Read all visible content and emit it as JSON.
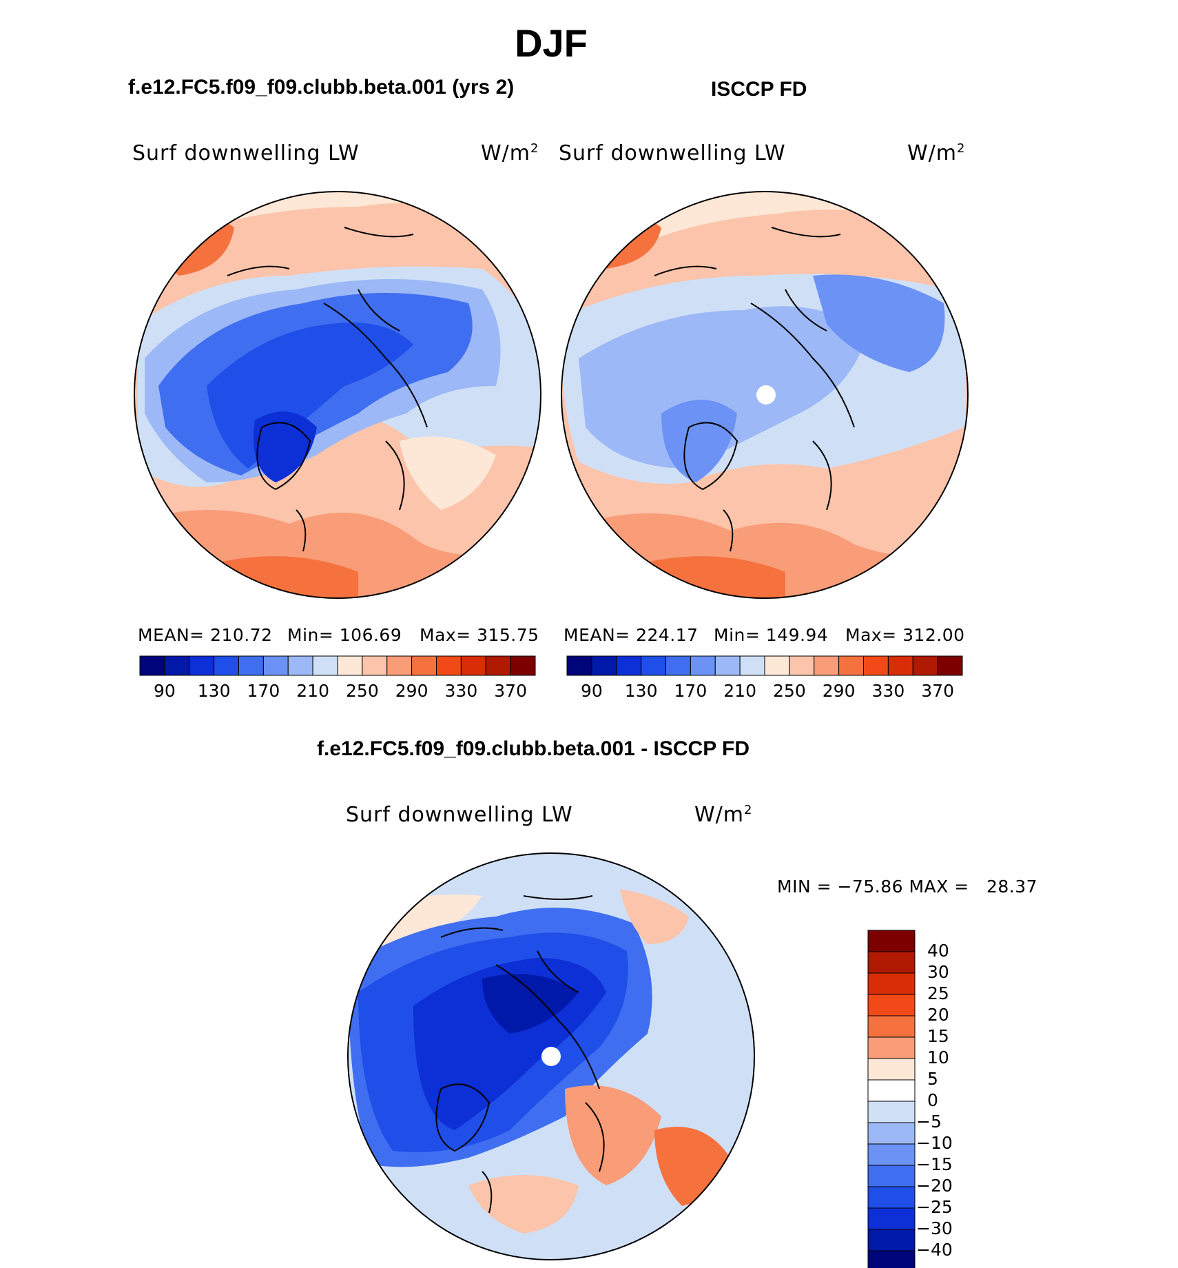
{
  "title": "DJF",
  "panels": {
    "model": {
      "case": "f.e12.FC5.f09_f09.clubb.beta.001 (yrs 2)",
      "variable": "Surf downwelling LW",
      "units": "W/m",
      "units_exp": "2",
      "mean_label": "MEAN=",
      "mean": "210.72",
      "min_label": "Min=",
      "min": "106.69",
      "max_label": "Max=",
      "max": "315.75"
    },
    "obs": {
      "case": "ISCCP FD",
      "variable": "Surf downwelling LW",
      "units": "W/m",
      "units_exp": "2",
      "mean_label": "MEAN=",
      "mean": "224.17",
      "min_label": "Min=",
      "min": "149.94",
      "max_label": "Max=",
      "max": "312.00"
    },
    "diff": {
      "case": "f.e12.FC5.f09_f09.clubb.beta.001 - ISCCP FD",
      "variable": "Surf downwelling LW",
      "units": "W/m",
      "units_exp": "2",
      "minmax_text": "MIN = −75.86 MAX =   28.37"
    }
  },
  "chart_data": [
    {
      "type": "heatmap",
      "projection": "north-polar-stereographic",
      "title": "f.e12.FC5.f09_f09.clubb.beta.001 (yrs 2)",
      "variable": "Surf downwelling LW",
      "units": "W/m^2",
      "stats": {
        "mean": 210.72,
        "min": 106.69,
        "max": 315.75
      },
      "colorbar_levels": [
        90,
        110,
        130,
        150,
        170,
        190,
        210,
        230,
        250,
        270,
        290,
        310,
        330,
        350,
        370
      ],
      "colorbar_tick_labels": [
        "90",
        "130",
        "170",
        "210",
        "250",
        "290",
        "330",
        "370"
      ],
      "colors": [
        "#00047a",
        "#0019a8",
        "#0d2fd6",
        "#1f4fe8",
        "#3f6ef0",
        "#6b92f4",
        "#9cb8f6",
        "#cfe0f6",
        "#fde7d6",
        "#fcc4aa",
        "#f99c78",
        "#f5723f",
        "#f14a18",
        "#d82d06",
        "#b01a02",
        "#7c0000"
      ]
    },
    {
      "type": "heatmap",
      "projection": "north-polar-stereographic",
      "title": "ISCCP FD",
      "variable": "Surf downwelling LW",
      "units": "W/m^2",
      "stats": {
        "mean": 224.17,
        "min": 149.94,
        "max": 312.0
      },
      "colorbar_levels": [
        90,
        110,
        130,
        150,
        170,
        190,
        210,
        230,
        250,
        270,
        290,
        310,
        330,
        350,
        370
      ],
      "colorbar_tick_labels": [
        "90",
        "130",
        "170",
        "210",
        "250",
        "290",
        "330",
        "370"
      ],
      "colors": [
        "#00047a",
        "#0019a8",
        "#0d2fd6",
        "#1f4fe8",
        "#3f6ef0",
        "#6b92f4",
        "#9cb8f6",
        "#cfe0f6",
        "#fde7d6",
        "#fcc4aa",
        "#f99c78",
        "#f5723f",
        "#f14a18",
        "#d82d06",
        "#b01a02",
        "#7c0000"
      ]
    },
    {
      "type": "heatmap",
      "projection": "north-polar-stereographic",
      "title": "f.e12.FC5.f09_f09.clubb.beta.001 - ISCCP FD",
      "variable": "Surf downwelling LW",
      "units": "W/m^2",
      "stats": {
        "min": -75.86,
        "max": 28.37
      },
      "colorbar_levels": [
        -40,
        -30,
        -25,
        -20,
        -15,
        -10,
        -5,
        0,
        5,
        10,
        15,
        20,
        25,
        30,
        40
      ],
      "colorbar_tick_labels": [
        "40",
        "30",
        "25",
        "20",
        "15",
        "10",
        "5",
        "0",
        "−5",
        "−10",
        "−15",
        "−20",
        "−25",
        "−30",
        "−40"
      ],
      "colors": [
        "#7c0000",
        "#b01a02",
        "#d82d06",
        "#f14a18",
        "#f5723f",
        "#f99c78",
        "#fde7d6",
        "#ffffff",
        "#cfe0f6",
        "#9cb8f6",
        "#6b92f4",
        "#3f6ef0",
        "#1f4fe8",
        "#0d2fd6",
        "#0019a8",
        "#00047a"
      ]
    }
  ]
}
